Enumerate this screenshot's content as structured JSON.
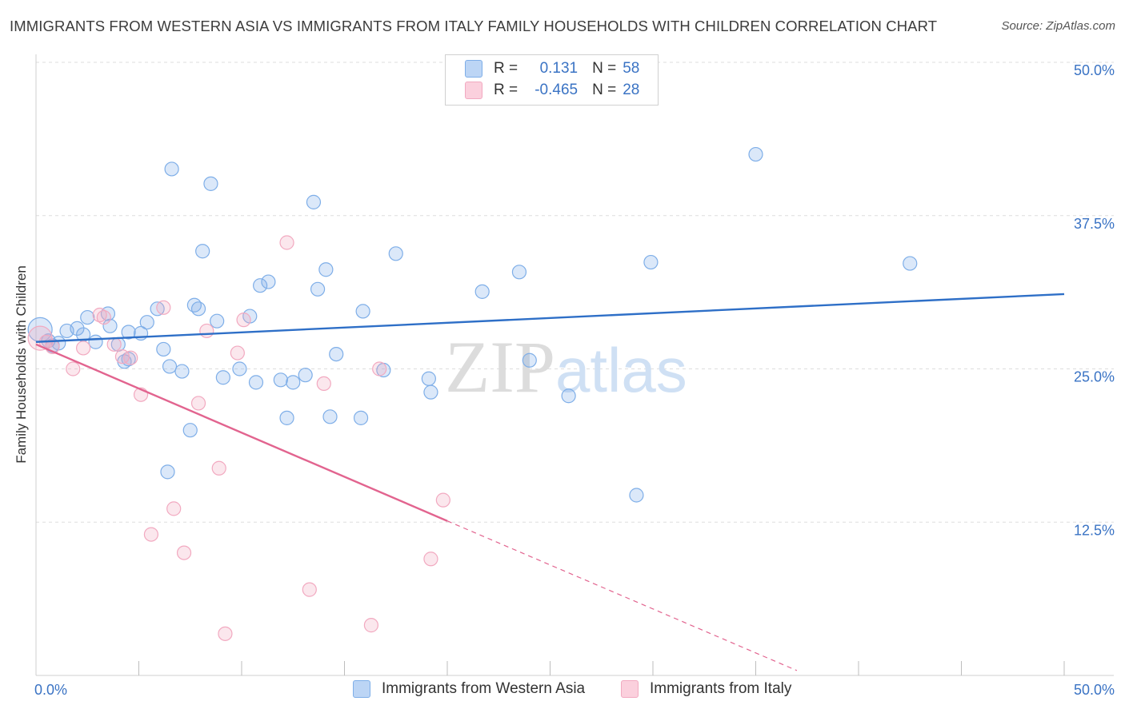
{
  "header": {
    "title": "IMMIGRANTS FROM WESTERN ASIA VS IMMIGRANTS FROM ITALY FAMILY HOUSEHOLDS WITH CHILDREN CORRELATION CHART",
    "source": "Source: ZipAtlas.com"
  },
  "legend": {
    "r_label": "R =",
    "n_label": "N =",
    "series_a": {
      "r": "0.131",
      "n": "58"
    },
    "series_b": {
      "r": "-0.465",
      "n": "28"
    }
  },
  "chart_data": {
    "type": "scatter",
    "title": "IMMIGRANTS FROM WESTERN ASIA VS IMMIGRANTS FROM ITALY FAMILY HOUSEHOLDS WITH CHILDREN CORRELATION CHART",
    "xlabel": "",
    "ylabel": "Family Households with Children",
    "xlim": [
      0,
      50
    ],
    "ylim": [
      0,
      50
    ],
    "x_tick_labels": [
      "0.0%",
      "50.0%"
    ],
    "y_ticks": [
      12.5,
      25.0,
      37.5,
      50.0
    ],
    "y_tick_labels": [
      "12.5%",
      "25.0%",
      "37.5%",
      "50.0%"
    ],
    "grid": true,
    "watermark": "ZIPatlas",
    "series": [
      {
        "name": "Immigrants from Western Asia",
        "color": "#7eaee8",
        "line_color": "#2e6fc7",
        "trend": {
          "x0": 0,
          "y0": 27.2,
          "x1": 50,
          "y1": 31.1
        },
        "points": [
          [
            0.2,
            28.2
          ],
          [
            0.6,
            27.3
          ],
          [
            0.8,
            26.9
          ],
          [
            1.1,
            27.1
          ],
          [
            1.5,
            28.1
          ],
          [
            2.0,
            28.3
          ],
          [
            2.3,
            27.8
          ],
          [
            2.9,
            27.2
          ],
          [
            3.6,
            28.5
          ],
          [
            4.5,
            28.0
          ],
          [
            2.5,
            29.2
          ],
          [
            3.5,
            29.5
          ],
          [
            4.0,
            27.0
          ],
          [
            4.3,
            25.6
          ],
          [
            4.5,
            25.8
          ],
          [
            5.1,
            27.9
          ],
          [
            5.4,
            28.8
          ],
          [
            5.9,
            29.9
          ],
          [
            6.2,
            26.6
          ],
          [
            6.5,
            25.2
          ],
          [
            6.6,
            41.3
          ],
          [
            7.1,
            24.8
          ],
          [
            7.5,
            20.0
          ],
          [
            7.7,
            30.2
          ],
          [
            7.9,
            29.9
          ],
          [
            8.1,
            34.6
          ],
          [
            8.5,
            40.1
          ],
          [
            8.8,
            28.9
          ],
          [
            9.1,
            24.3
          ],
          [
            9.9,
            25.0
          ],
          [
            10.4,
            29.3
          ],
          [
            10.7,
            23.9
          ],
          [
            10.9,
            31.8
          ],
          [
            11.3,
            32.1
          ],
          [
            11.9,
            24.1
          ],
          [
            12.2,
            21.0
          ],
          [
            12.5,
            23.9
          ],
          [
            13.1,
            24.5
          ],
          [
            13.5,
            38.6
          ],
          [
            13.7,
            31.5
          ],
          [
            14.1,
            33.1
          ],
          [
            14.3,
            21.1
          ],
          [
            14.6,
            26.2
          ],
          [
            15.8,
            21.0
          ],
          [
            15.9,
            29.7
          ],
          [
            16.9,
            24.9
          ],
          [
            17.5,
            34.4
          ],
          [
            19.1,
            24.2
          ],
          [
            19.2,
            23.1
          ],
          [
            21.7,
            31.3
          ],
          [
            23.5,
            32.9
          ],
          [
            24.0,
            25.7
          ],
          [
            25.9,
            22.8
          ],
          [
            6.4,
            16.6
          ],
          [
            29.2,
            14.7
          ],
          [
            29.9,
            33.7
          ],
          [
            35.0,
            42.5
          ],
          [
            42.5,
            33.6
          ]
        ]
      },
      {
        "name": "Immigrants from Italy",
        "color": "#f2a9c0",
        "line_color": "#e2648f",
        "trend": {
          "x0": 0,
          "y0": 27.0,
          "x1": 20.0,
          "y1": 12.6
        },
        "trend_dashed": {
          "x0": 20.0,
          "y0": 12.6,
          "x1": 37.0,
          "y1": 0.4
        },
        "points": [
          [
            0.2,
            27.5
          ],
          [
            0.5,
            27.2
          ],
          [
            0.8,
            26.8
          ],
          [
            1.8,
            25.0
          ],
          [
            2.3,
            26.7
          ],
          [
            3.1,
            29.4
          ],
          [
            3.3,
            29.2
          ],
          [
            3.8,
            27.0
          ],
          [
            4.2,
            26.0
          ],
          [
            4.6,
            25.9
          ],
          [
            5.1,
            22.9
          ],
          [
            5.6,
            11.5
          ],
          [
            6.2,
            30.0
          ],
          [
            6.7,
            13.6
          ],
          [
            7.2,
            10.0
          ],
          [
            7.9,
            22.2
          ],
          [
            8.3,
            28.1
          ],
          [
            8.9,
            16.9
          ],
          [
            9.2,
            3.4
          ],
          [
            9.8,
            26.3
          ],
          [
            10.1,
            29.0
          ],
          [
            12.2,
            35.3
          ],
          [
            13.3,
            7.0
          ],
          [
            14.0,
            23.8
          ],
          [
            16.3,
            4.1
          ],
          [
            16.7,
            25.0
          ],
          [
            19.2,
            9.5
          ],
          [
            19.8,
            14.3
          ]
        ]
      }
    ]
  },
  "bottom_legend": {
    "series_a_label": "Immigrants from Western Asia",
    "series_b_label": "Immigrants from Italy"
  }
}
